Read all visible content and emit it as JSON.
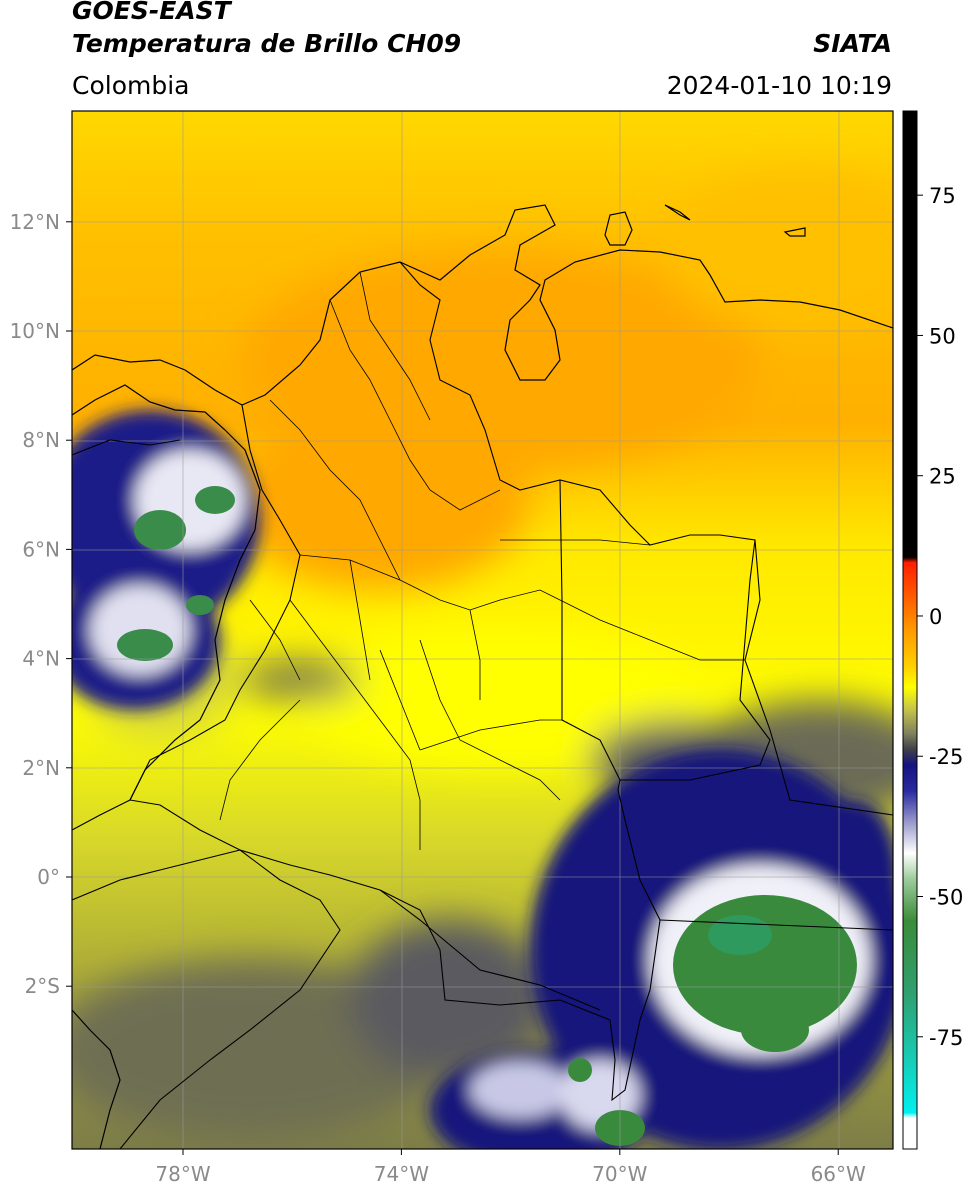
{
  "header": {
    "title_line1": "GOES-EAST",
    "title_line2": "Temperatura de Brillo CH09",
    "region": "Colombia",
    "organization": "SIATA",
    "timestamp": "2024-01-10 10:19"
  },
  "map": {
    "lon_range": [
      -80,
      -65
    ],
    "lat_range": [
      -5.2,
      14
    ],
    "lon_ticks": [
      {
        "value": -78,
        "label": "78°W"
      },
      {
        "value": -74,
        "label": "74°W"
      },
      {
        "value": -70,
        "label": "70°W"
      },
      {
        "value": -66,
        "label": "66°W"
      }
    ],
    "lat_ticks": [
      {
        "value": 12,
        "label": "12°N"
      },
      {
        "value": 10,
        "label": "10°N"
      },
      {
        "value": 8,
        "label": "8°N"
      },
      {
        "value": 6,
        "label": "6°N"
      },
      {
        "value": 4,
        "label": "4°N"
      },
      {
        "value": 2,
        "label": "2°N"
      },
      {
        "value": 0,
        "label": "0°"
      },
      {
        "value": -2,
        "label": "2°S"
      }
    ],
    "gridlines": true
  },
  "colorbar": {
    "range": [
      -95,
      90
    ],
    "ticks": [
      {
        "value": 75,
        "label": "75"
      },
      {
        "value": 50,
        "label": "50"
      },
      {
        "value": 25,
        "label": "25"
      },
      {
        "value": 0,
        "label": "0"
      },
      {
        "value": -25,
        "label": "-25"
      },
      {
        "value": -50,
        "label": "-50"
      },
      {
        "value": -75,
        "label": "-75"
      }
    ],
    "colors": {
      "black": "#000000",
      "red": "#ff2a00",
      "orange": "#ffa500",
      "yellow": "#ffff00",
      "olive": "#a9a836",
      "gray": "#606060",
      "navy": "#13127c",
      "white": "#ffffff",
      "green": "#3a8c3a",
      "cyan": "#00e0e0"
    }
  }
}
